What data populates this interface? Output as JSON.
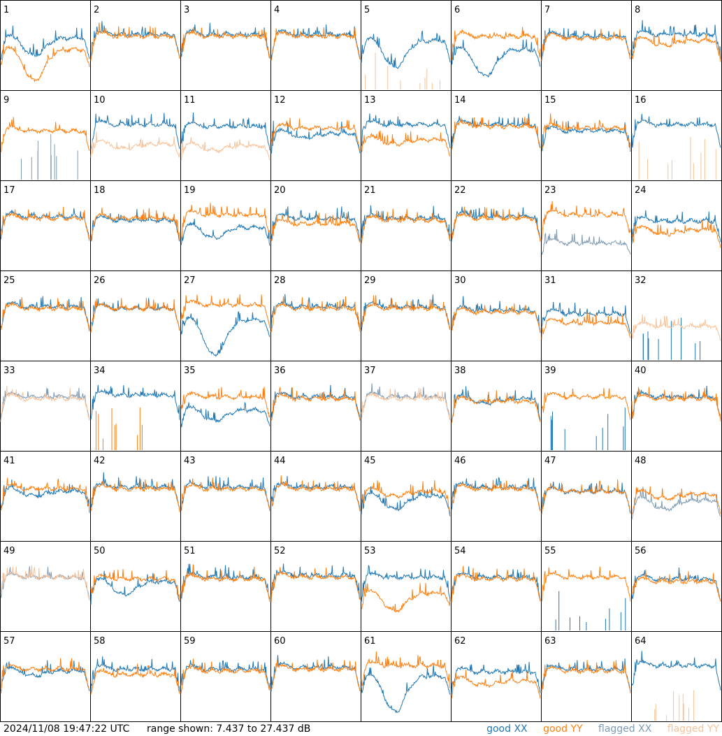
{
  "footer": {
    "timestamp": "2024/11/08 19:47:22 UTC",
    "range_text": "range shown: 7.437 to 27.437 dB"
  },
  "legend": [
    {
      "key": "good_xx",
      "word": "good",
      "pol": "XX",
      "color": "#1f77b4"
    },
    {
      "key": "good_yy",
      "word": "good",
      "pol": "YY",
      "color": "#ff7f0e"
    },
    {
      "key": "flagged_xx",
      "word": "flagged",
      "pol": "XX",
      "color": "#7f9bb4"
    },
    {
      "key": "flagged_yy",
      "word": "flagged",
      "pol": "YY",
      "color": "#f6c39b"
    }
  ],
  "chart_data": {
    "type": "line",
    "layout": "small-multiples 8x8",
    "y_unit": "dB",
    "ylim": [
      7.437,
      27.437
    ],
    "grid": false,
    "legend_position": "bottom-right",
    "tiles": [
      {
        "label": "1",
        "xx": "good",
        "yy": "good",
        "xx_level": 0.58,
        "yy_level": 0.45,
        "xx_dip": 0.2,
        "yy_dip": 0.35
      },
      {
        "label": "2",
        "xx": "good",
        "yy": "good",
        "xx_level": 0.62,
        "yy_level": 0.6,
        "xx_dip": 0.0,
        "yy_dip": 0.0
      },
      {
        "label": "3",
        "xx": "good",
        "yy": "good",
        "xx_level": 0.62,
        "yy_level": 0.6,
        "xx_dip": 0.0,
        "yy_dip": 0.0
      },
      {
        "label": "4",
        "xx": "good",
        "yy": "good",
        "xx_level": 0.62,
        "yy_level": 0.6,
        "xx_dip": 0.0,
        "yy_dip": 0.0
      },
      {
        "label": "5",
        "xx": "good",
        "yy": "flagged",
        "xx_level": 0.55,
        "yy_level": 0.02,
        "xx_dip": 0.3,
        "yy_dip": 0.0
      },
      {
        "label": "6",
        "xx": "good",
        "yy": "good",
        "xx_level": 0.45,
        "yy_level": 0.6,
        "xx_dip": 0.3,
        "yy_dip": 0.0
      },
      {
        "label": "7",
        "xx": "good",
        "yy": "good",
        "xx_level": 0.6,
        "yy_level": 0.58,
        "xx_dip": 0.0,
        "yy_dip": 0.0
      },
      {
        "label": "8",
        "xx": "good",
        "yy": "good",
        "xx_level": 0.62,
        "yy_level": 0.55,
        "xx_dip": 0.0,
        "yy_dip": 0.05
      },
      {
        "label": "9",
        "xx": "flagged",
        "yy": "good",
        "xx_level": 0.05,
        "yy_level": 0.55,
        "xx_dip": 0.0,
        "yy_dip": 0.0
      },
      {
        "label": "10",
        "xx": "good",
        "yy": "flagged",
        "xx_level": 0.62,
        "yy_level": 0.4,
        "xx_dip": 0.0,
        "yy_dip": 0.05
      },
      {
        "label": "11",
        "xx": "good",
        "yy": "flagged",
        "xx_level": 0.6,
        "yy_level": 0.38,
        "xx_dip": 0.0,
        "yy_dip": 0.05
      },
      {
        "label": "12",
        "xx": "good",
        "yy": "good",
        "xx_level": 0.52,
        "yy_level": 0.58,
        "xx_dip": 0.05,
        "yy_dip": 0.0
      },
      {
        "label": "13",
        "xx": "good",
        "yy": "good",
        "xx_level": 0.62,
        "yy_level": 0.45,
        "xx_dip": 0.0,
        "yy_dip": 0.05
      },
      {
        "label": "14",
        "xx": "good",
        "yy": "good",
        "xx_level": 0.62,
        "yy_level": 0.6,
        "xx_dip": 0.0,
        "yy_dip": 0.0
      },
      {
        "label": "15",
        "xx": "good",
        "yy": "good",
        "xx_level": 0.55,
        "yy_level": 0.58,
        "xx_dip": 0.0,
        "yy_dip": 0.0
      },
      {
        "label": "16",
        "xx": "good",
        "yy": "flagged",
        "xx_level": 0.62,
        "yy_level": 0.02,
        "xx_dip": 0.0,
        "yy_dip": 0.0
      },
      {
        "label": "17",
        "xx": "good",
        "yy": "good",
        "xx_level": 0.6,
        "yy_level": 0.58,
        "xx_dip": 0.0,
        "yy_dip": 0.0
      },
      {
        "label": "18",
        "xx": "good",
        "yy": "good",
        "xx_level": 0.56,
        "yy_level": 0.58,
        "xx_dip": 0.0,
        "yy_dip": 0.0
      },
      {
        "label": "19",
        "xx": "good",
        "yy": "good",
        "xx_level": 0.48,
        "yy_level": 0.62,
        "xx_dip": 0.12,
        "yy_dip": 0.0
      },
      {
        "label": "20",
        "xx": "good",
        "yy": "good",
        "xx_level": 0.58,
        "yy_level": 0.52,
        "xx_dip": 0.0,
        "yy_dip": 0.0
      },
      {
        "label": "21",
        "xx": "good",
        "yy": "good",
        "xx_level": 0.58,
        "yy_level": 0.56,
        "xx_dip": 0.0,
        "yy_dip": 0.0
      },
      {
        "label": "22",
        "xx": "good",
        "yy": "good",
        "xx_level": 0.6,
        "yy_level": 0.58,
        "xx_dip": 0.0,
        "yy_dip": 0.0
      },
      {
        "label": "23",
        "xx": "flagged",
        "yy": "good",
        "xx_level": 0.3,
        "yy_level": 0.62,
        "xx_dip": 0.0,
        "yy_dip": 0.0
      },
      {
        "label": "24",
        "xx": "good",
        "yy": "good",
        "xx_level": 0.55,
        "yy_level": 0.45,
        "xx_dip": 0.0,
        "yy_dip": 0.05
      },
      {
        "label": "25",
        "xx": "good",
        "yy": "good",
        "xx_level": 0.6,
        "yy_level": 0.58,
        "xx_dip": 0.0,
        "yy_dip": 0.0
      },
      {
        "label": "26",
        "xx": "good",
        "yy": "good",
        "xx_level": 0.58,
        "yy_level": 0.58,
        "xx_dip": 0.0,
        "yy_dip": 0.0
      },
      {
        "label": "27",
        "xx": "good",
        "yy": "good",
        "xx_level": 0.45,
        "yy_level": 0.62,
        "xx_dip": 0.4,
        "yy_dip": 0.0
      },
      {
        "label": "28",
        "xx": "good",
        "yy": "good",
        "xx_level": 0.6,
        "yy_level": 0.58,
        "xx_dip": 0.0,
        "yy_dip": 0.0
      },
      {
        "label": "29",
        "xx": "good",
        "yy": "good",
        "xx_level": 0.6,
        "yy_level": 0.58,
        "xx_dip": 0.0,
        "yy_dip": 0.0
      },
      {
        "label": "30",
        "xx": "good",
        "yy": "good",
        "xx_level": 0.56,
        "yy_level": 0.54,
        "xx_dip": 0.0,
        "yy_dip": 0.0
      },
      {
        "label": "31",
        "xx": "good",
        "yy": "good",
        "xx_level": 0.52,
        "yy_level": 0.42,
        "xx_dip": 0.0,
        "yy_dip": 0.0
      },
      {
        "label": "32",
        "xx": "good",
        "yy": "flagged",
        "xx_level": 0.02,
        "yy_level": 0.38,
        "xx_dip": 0.0,
        "yy_dip": 0.0
      },
      {
        "label": "33",
        "xx": "flagged",
        "yy": "flagged",
        "xx_level": 0.6,
        "yy_level": 0.58,
        "xx_dip": 0.0,
        "yy_dip": 0.0
      },
      {
        "label": "34",
        "xx": "good",
        "yy": "good",
        "xx_level": 0.62,
        "yy_level": 0.05,
        "xx_dip": 0.0,
        "yy_dip": 0.0
      },
      {
        "label": "35",
        "xx": "good",
        "yy": "good",
        "xx_level": 0.45,
        "yy_level": 0.6,
        "xx_dip": 0.12,
        "yy_dip": 0.0
      },
      {
        "label": "36",
        "xx": "good",
        "yy": "good",
        "xx_level": 0.6,
        "yy_level": 0.58,
        "xx_dip": 0.0,
        "yy_dip": 0.0
      },
      {
        "label": "37",
        "xx": "flagged",
        "yy": "flagged",
        "xx_level": 0.6,
        "yy_level": 0.58,
        "xx_dip": 0.0,
        "yy_dip": 0.0
      },
      {
        "label": "38",
        "xx": "good",
        "yy": "good",
        "xx_level": 0.58,
        "yy_level": 0.55,
        "xx_dip": 0.05,
        "yy_dip": 0.0
      },
      {
        "label": "39",
        "xx": "good",
        "yy": "good",
        "xx_level": 0.02,
        "yy_level": 0.6,
        "xx_dip": 0.0,
        "yy_dip": 0.0
      },
      {
        "label": "40",
        "xx": "good",
        "yy": "good",
        "xx_level": 0.6,
        "yy_level": 0.58,
        "xx_dip": 0.0,
        "yy_dip": 0.0
      },
      {
        "label": "41",
        "xx": "good",
        "yy": "good",
        "xx_level": 0.55,
        "yy_level": 0.58,
        "xx_dip": 0.05,
        "yy_dip": 0.0
      },
      {
        "label": "42",
        "xx": "good",
        "yy": "good",
        "xx_level": 0.6,
        "yy_level": 0.58,
        "xx_dip": 0.0,
        "yy_dip": 0.0
      },
      {
        "label": "43",
        "xx": "good",
        "yy": "good",
        "xx_level": 0.6,
        "yy_level": 0.58,
        "xx_dip": 0.0,
        "yy_dip": 0.0
      },
      {
        "label": "44",
        "xx": "good",
        "yy": "good",
        "xx_level": 0.6,
        "yy_level": 0.58,
        "xx_dip": 0.0,
        "yy_dip": 0.0
      },
      {
        "label": "45",
        "xx": "good",
        "yy": "good",
        "xx_level": 0.5,
        "yy_level": 0.55,
        "xx_dip": 0.15,
        "yy_dip": 0.05
      },
      {
        "label": "46",
        "xx": "good",
        "yy": "good",
        "xx_level": 0.6,
        "yy_level": 0.58,
        "xx_dip": 0.0,
        "yy_dip": 0.0
      },
      {
        "label": "47",
        "xx": "good",
        "yy": "good",
        "xx_level": 0.55,
        "yy_level": 0.55,
        "xx_dip": 0.0,
        "yy_dip": 0.0
      },
      {
        "label": "48",
        "xx": "flagged",
        "yy": "good",
        "xx_level": 0.45,
        "yy_level": 0.52,
        "xx_dip": 0.1,
        "yy_dip": 0.05
      },
      {
        "label": "49",
        "xx": "flagged",
        "yy": "flagged",
        "xx_level": 0.6,
        "yy_level": 0.6,
        "xx_dip": 0.0,
        "yy_dip": 0.0
      },
      {
        "label": "50",
        "xx": "good",
        "yy": "good",
        "xx_level": 0.55,
        "yy_level": 0.58,
        "xx_dip": 0.15,
        "yy_dip": 0.0
      },
      {
        "label": "51",
        "xx": "good",
        "yy": "good",
        "xx_level": 0.6,
        "yy_level": 0.58,
        "xx_dip": 0.0,
        "yy_dip": 0.0
      },
      {
        "label": "52",
        "xx": "good",
        "yy": "good",
        "xx_level": 0.62,
        "yy_level": 0.6,
        "xx_dip": 0.0,
        "yy_dip": 0.0
      },
      {
        "label": "53",
        "xx": "good",
        "yy": "good",
        "xx_level": 0.6,
        "yy_level": 0.42,
        "xx_dip": 0.0,
        "yy_dip": 0.2
      },
      {
        "label": "54",
        "xx": "good",
        "yy": "good",
        "xx_level": 0.6,
        "yy_level": 0.58,
        "xx_dip": 0.0,
        "yy_dip": 0.0
      },
      {
        "label": "55",
        "xx": "good",
        "yy": "good",
        "xx_level": 0.08,
        "yy_level": 0.6,
        "xx_dip": 0.0,
        "yy_dip": 0.0
      },
      {
        "label": "56",
        "xx": "good",
        "yy": "good",
        "xx_level": 0.58,
        "yy_level": 0.55,
        "xx_dip": 0.0,
        "yy_dip": 0.0
      },
      {
        "label": "57",
        "xx": "good",
        "yy": "good",
        "xx_level": 0.56,
        "yy_level": 0.58,
        "xx_dip": 0.05,
        "yy_dip": 0.0
      },
      {
        "label": "58",
        "xx": "good",
        "yy": "good",
        "xx_level": 0.58,
        "yy_level": 0.52,
        "xx_dip": 0.0,
        "yy_dip": 0.0
      },
      {
        "label": "59",
        "xx": "good",
        "yy": "good",
        "xx_level": 0.58,
        "yy_level": 0.56,
        "xx_dip": 0.0,
        "yy_dip": 0.0
      },
      {
        "label": "60",
        "xx": "good",
        "yy": "good",
        "xx_level": 0.6,
        "yy_level": 0.58,
        "xx_dip": 0.0,
        "yy_dip": 0.0
      },
      {
        "label": "61",
        "xx": "good",
        "yy": "good",
        "xx_level": 0.5,
        "yy_level": 0.62,
        "xx_dip": 0.4,
        "yy_dip": 0.0
      },
      {
        "label": "62",
        "xx": "good",
        "yy": "good",
        "xx_level": 0.55,
        "yy_level": 0.45,
        "xx_dip": 0.0,
        "yy_dip": 0.05
      },
      {
        "label": "63",
        "xx": "good",
        "yy": "good",
        "xx_level": 0.58,
        "yy_level": 0.56,
        "xx_dip": 0.0,
        "yy_dip": 0.0
      },
      {
        "label": "64",
        "xx": "good",
        "yy": "flagged",
        "xx_level": 0.62,
        "yy_level": 0.02,
        "xx_dip": 0.0,
        "yy_dip": 0.0
      }
    ]
  }
}
